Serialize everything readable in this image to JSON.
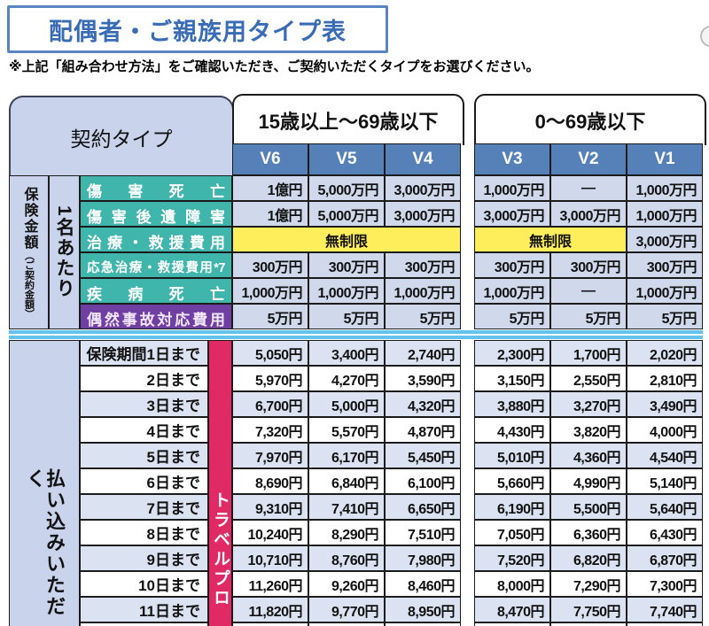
{
  "header": {
    "title": "配偶者・ご親族用タイプ表",
    "note": "※上記「組み合わせ方法」をご確認いただき、ご契約いただくタイプをお選びください。",
    "contract_type_label": "契約タイプ"
  },
  "age_groups": [
    {
      "label": "15歳以上〜69歳以下",
      "columns": [
        "V6",
        "V5",
        "V4"
      ]
    },
    {
      "label": "0〜69歳以下",
      "columns": [
        "V3",
        "V2",
        "V1"
      ]
    }
  ],
  "side_labels": {
    "insurance_amount": "保険金額",
    "insurance_amount_sub": "（ご契約金額）",
    "per_person": "1名あたり",
    "premium_paid": "払い込みいただく",
    "travel_band": "トラベルプロ"
  },
  "coverage": {
    "unlimited_label": "無制限",
    "rows": [
      {
        "label": "傷害死亡",
        "color": "teal",
        "left": [
          "1億円",
          "5,000万円",
          "3,000万円"
        ],
        "right": [
          "1,000万円",
          "—",
          "1,000万円"
        ]
      },
      {
        "label": "傷害後遺障害",
        "color": "teal",
        "left": [
          "1億円",
          "5,000万円",
          "3,000万円"
        ],
        "right": [
          "3,000万円",
          "3,000万円",
          "1,000万円"
        ]
      },
      {
        "label": "治療・救援費用",
        "color": "teal",
        "left_merged": "無制限",
        "right_merged2": "無制限",
        "right_last": "3,000万円"
      },
      {
        "label": "応急治療・救援費用*7",
        "color": "teal",
        "compact": true,
        "left": [
          "300万円",
          "300万円",
          "300万円"
        ],
        "right": [
          "300万円",
          "300万円",
          "300万円"
        ]
      },
      {
        "label": "疾病死亡",
        "color": "teal",
        "left": [
          "1,000万円",
          "1,000万円",
          "1,000万円"
        ],
        "right": [
          "1,000万円",
          "—",
          "1,000万円"
        ]
      },
      {
        "label": "偶然事故対応費用",
        "color": "purple",
        "left": [
          "5万円",
          "5万円",
          "5万円"
        ],
        "right": [
          "5万円",
          "5万円",
          "5万円"
        ]
      }
    ]
  },
  "premiums": {
    "rows": [
      {
        "label": "保険期間1日まで",
        "left": [
          "5,050円",
          "3,400円",
          "2,740円"
        ],
        "right": [
          "2,300円",
          "1,700円",
          "2,020円"
        ]
      },
      {
        "label": "2日まで",
        "left": [
          "5,970円",
          "4,270円",
          "3,590円"
        ],
        "right": [
          "3,150円",
          "2,550円",
          "2,810円"
        ]
      },
      {
        "label": "3日まで",
        "left": [
          "6,700円",
          "5,000円",
          "4,320円"
        ],
        "right": [
          "3,880円",
          "3,270円",
          "3,490円"
        ]
      },
      {
        "label": "4日まで",
        "left": [
          "7,320円",
          "5,570円",
          "4,870円"
        ],
        "right": [
          "4,430円",
          "3,820円",
          "4,000円"
        ]
      },
      {
        "label": "5日まで",
        "left": [
          "7,970円",
          "6,170円",
          "5,450円"
        ],
        "right": [
          "5,010円",
          "4,360円",
          "4,540円"
        ]
      },
      {
        "label": "6日まで",
        "left": [
          "8,690円",
          "6,840円",
          "6,100円"
        ],
        "right": [
          "5,660円",
          "4,990円",
          "5,140円"
        ]
      },
      {
        "label": "7日まで",
        "left": [
          "9,310円",
          "7,410円",
          "6,650円"
        ],
        "right": [
          "6,190円",
          "5,500円",
          "5,640円"
        ]
      },
      {
        "label": "8日まで",
        "left": [
          "10,240円",
          "8,290円",
          "7,510円"
        ],
        "right": [
          "7,050円",
          "6,360円",
          "6,430円"
        ]
      },
      {
        "label": "9日まで",
        "left": [
          "10,710円",
          "8,760円",
          "7,980円"
        ],
        "right": [
          "7,520円",
          "6,820円",
          "6,870円"
        ]
      },
      {
        "label": "10日まで",
        "left": [
          "11,260円",
          "9,260円",
          "8,460円"
        ],
        "right": [
          "8,000円",
          "7,290円",
          "7,300円"
        ]
      },
      {
        "label": "11日まで",
        "left": [
          "11,820円",
          "9,770円",
          "8,950円"
        ],
        "right": [
          "8,470円",
          "7,750円",
          "7,740円"
        ]
      }
    ]
  },
  "colors": {
    "header_blue": "#5580b8",
    "panel_blue": "#c9d4ec",
    "cell_blue": "#cfd9eb",
    "row_alt_blue": "#dbe2f1",
    "teal": "#3fb5ac",
    "purple": "#6f3fa2",
    "pink": "#e02a66",
    "yellow": "#ffee5c",
    "cyan_rule": "#63c3ec",
    "title_blue": "#3a6cb5"
  }
}
